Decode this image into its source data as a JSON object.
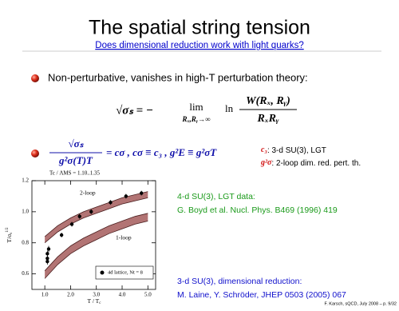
{
  "slide": {
    "title": "The spatial string tension",
    "subtitle": "Does dimensional reduction work with light quarks?",
    "bullet1": "Non-perturbative, vanishes in high-T perturbation theory:",
    "eq1": {
      "lhs": "√σₛ = −",
      "lim": "lim",
      "lim_sub": "Rₓ,Rᵧ→∞",
      "ln": "ln",
      "num": "W(Rₓ, Rᵧ)",
      "den": "RₓRᵧ"
    },
    "eq2": {
      "num": "√σₛ",
      "den": "g²σ(T)T",
      "rhs": "= cσ , cσ ≡ c₃ , g²E ≡ g²σT"
    },
    "notes": [
      {
        "sym": "c₃",
        "text": ": 3-d SU(3), LGT"
      },
      {
        "sym": "g²σ",
        "text": ": 2-loop dim. red. pert. th."
      }
    ],
    "lattice_ref": [
      "4-d SU(3), LGT data:",
      "G. Boyd et al. Nucl. Phys. B469 (1996) 419"
    ],
    "dimred_ref": [
      "3-d SU(3), dimensional reduction:",
      "M. Laine, Y. Schröder, JHEP 0503 (2005) 067"
    ],
    "footer": "F. Karsch, sQCD, July 2008 – p. 9/32"
  },
  "chart_data": {
    "type": "scatter",
    "annotation": "Tc / ΛMS = 1.10..1.35",
    "y_label": {
      "main": "T/σ",
      "sub": "s",
      "sup": "1/2"
    },
    "x_label": {
      "main": "T / T",
      "sub": "c"
    },
    "xlim": [
      0.5,
      5.3
    ],
    "ylim": [
      0.5,
      1.2
    ],
    "xticks": [
      {
        "value": 1,
        "label": "1.0"
      },
      {
        "value": 2,
        "label": "2.0"
      },
      {
        "value": 3,
        "label": "3.0"
      },
      {
        "value": 4,
        "label": "4.0"
      },
      {
        "value": 5,
        "label": "5.0"
      }
    ],
    "yticks": [
      0.6,
      0.8,
      {
        "value": 1,
        "label": "1.0"
      },
      1.2
    ],
    "series": [
      {
        "name": "4d lattice, Nt = 8",
        "color": "#000000",
        "x": [
          1.1,
          1.1,
          1.1,
          1.15,
          1.65,
          2.05,
          2.35,
          2.8,
          3.55,
          4.15,
          4.75
        ],
        "values": [
          0.68,
          0.7,
          0.73,
          0.76,
          0.85,
          0.92,
          0.97,
          1.0,
          1.06,
          1.1,
          1.12
        ],
        "errors": [
          0.02,
          0.02,
          0.02,
          0.02,
          0.015,
          0.015,
          0.015,
          0.015,
          0.015,
          0.015,
          0.015
        ]
      }
    ],
    "bands": [
      {
        "name": "2-loop",
        "color": "#b27474",
        "x": [
          1,
          1.5,
          2,
          2.5,
          3,
          3.5,
          4,
          4.5,
          5
        ],
        "lower": [
          0.8,
          0.87,
          0.92,
          0.96,
          0.99,
          1.02,
          1.05,
          1.07,
          1.09
        ],
        "upper": [
          0.84,
          0.91,
          0.96,
          1.0,
          1.03,
          1.06,
          1.09,
          1.11,
          1.13
        ]
      },
      {
        "name": "1-loop",
        "color": "#b27474",
        "x": [
          1,
          1.5,
          2,
          2.5,
          3,
          3.5,
          4,
          4.5,
          5
        ],
        "lower": [
          0.57,
          0.66,
          0.73,
          0.78,
          0.82,
          0.86,
          0.89,
          0.92,
          0.94
        ],
        "upper": [
          0.62,
          0.71,
          0.78,
          0.83,
          0.87,
          0.91,
          0.94,
          0.97,
          0.99
        ]
      }
    ]
  }
}
